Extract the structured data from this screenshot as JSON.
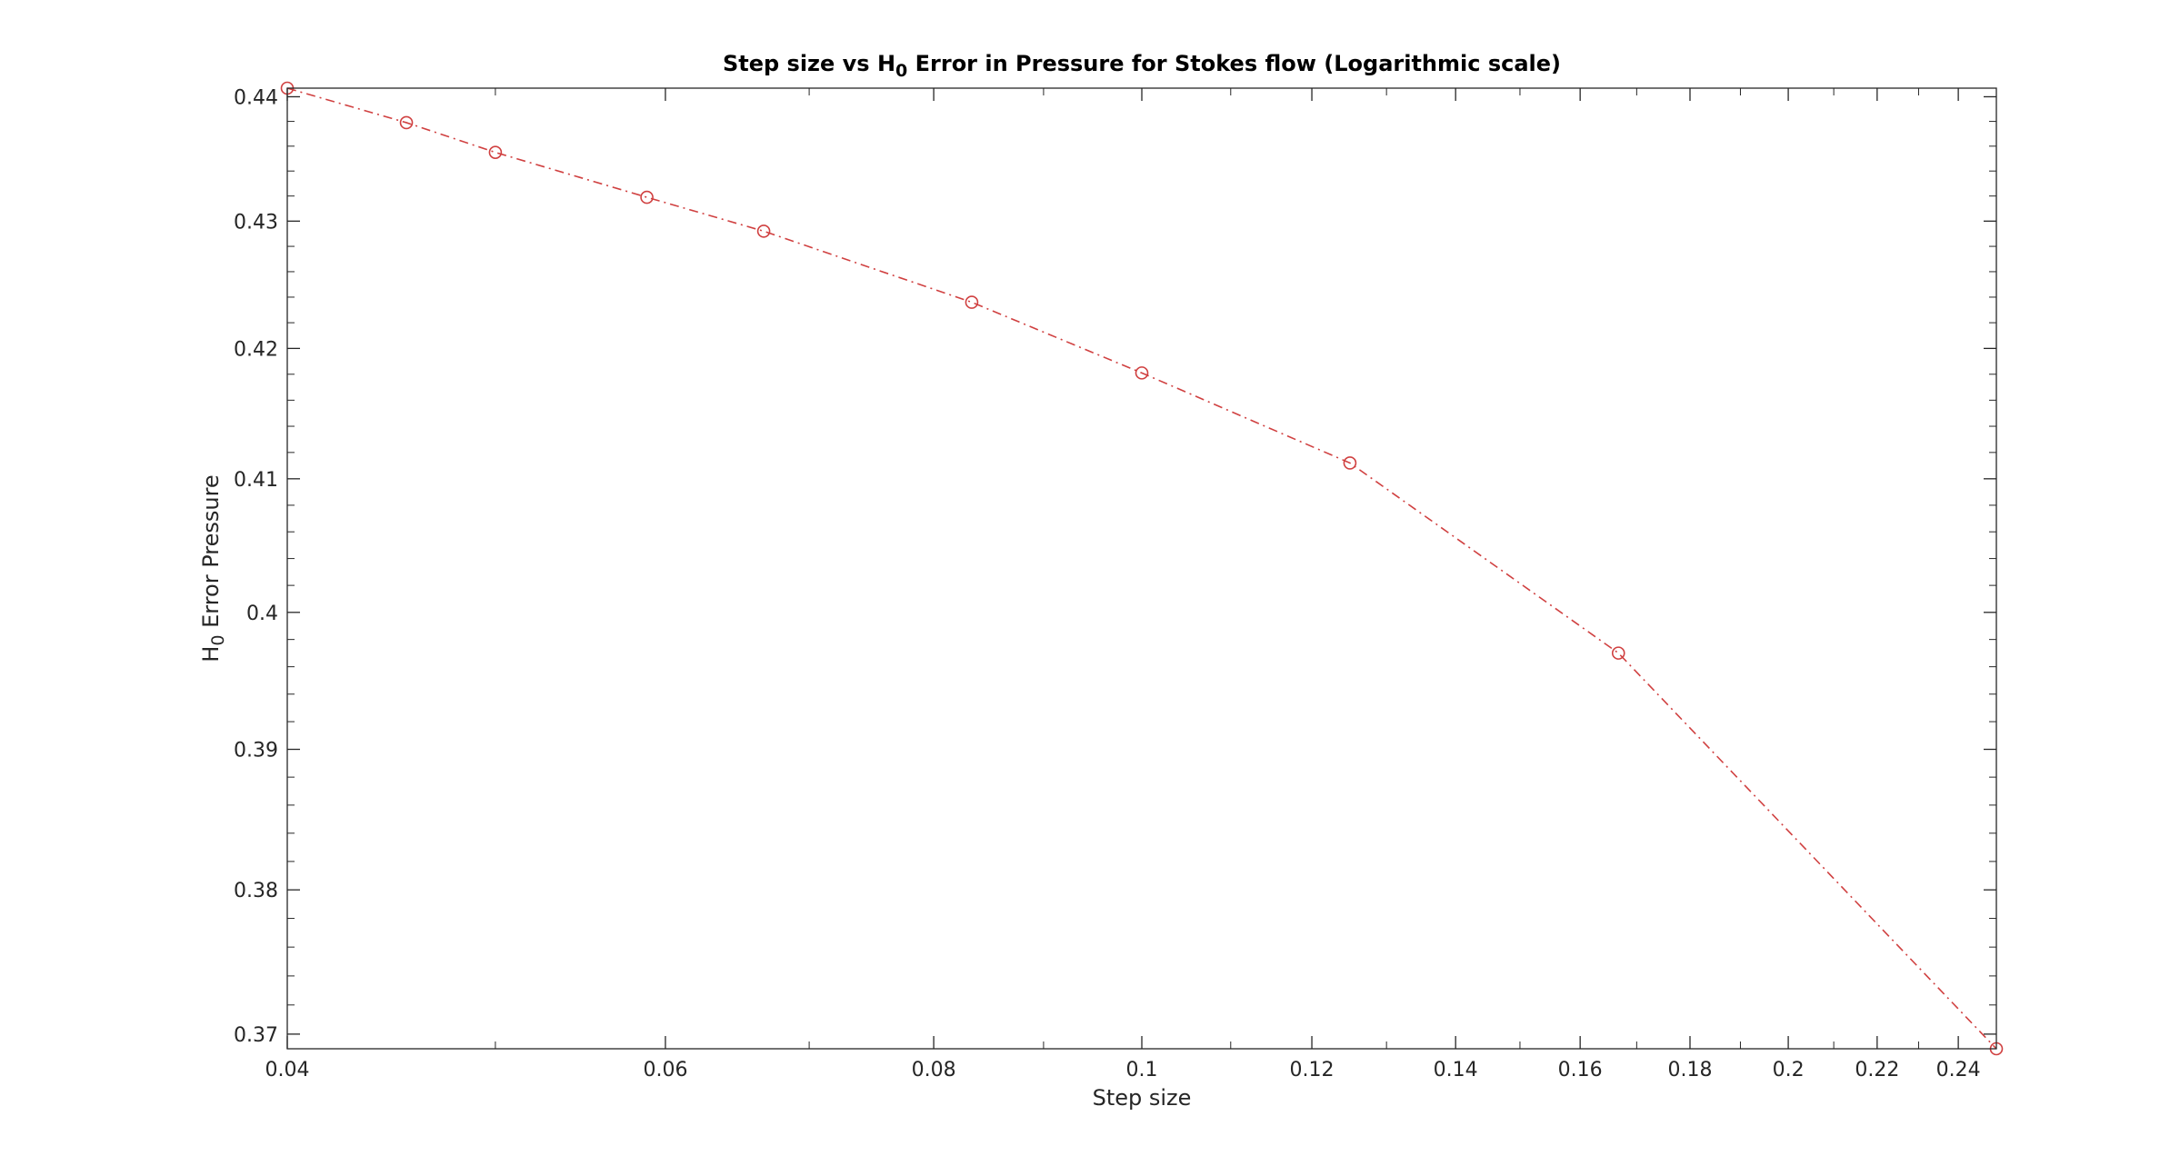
{
  "chart_data": {
    "type": "line",
    "title_main": "Step size vs H",
    "title_sub": "0",
    "title_rest": " Error in Pressure for Stokes flow (Logarithmic scale)",
    "xlabel": "Step size",
    "ylabel_main": "H",
    "ylabel_sub": "0",
    "ylabel_rest": " Error Pressure",
    "xscale": "log",
    "yscale": "log",
    "xlim": [
      0.04,
      0.25
    ],
    "ylim": [
      0.369,
      0.4407
    ],
    "x_ticks": [
      0.04,
      0.06,
      0.08,
      0.1,
      0.12,
      0.14,
      0.16,
      0.18,
      0.2,
      0.22,
      0.24
    ],
    "x_tick_labels": [
      "0.04",
      "0.06",
      "0.08",
      "0.1",
      "0.12",
      "0.14",
      "0.16",
      "0.18",
      "0.2",
      "0.22",
      "0.24"
    ],
    "y_ticks": [
      0.37,
      0.38,
      0.39,
      0.4,
      0.41,
      0.42,
      0.43,
      0.44
    ],
    "y_tick_labels": [
      "0.37",
      "0.38",
      "0.39",
      "0.4",
      "0.41",
      "0.42",
      "0.43",
      "0.44"
    ],
    "grid": false,
    "box": true,
    "series": [
      {
        "color": "#d04040",
        "line_style": "dash-dot",
        "marker": "circle",
        "x": [
          0.04,
          0.04545,
          0.05,
          0.05882,
          0.06667,
          0.08333,
          0.1,
          0.125,
          0.1667,
          0.25
        ],
        "y": [
          0.4407,
          0.4379,
          0.4355,
          0.4319,
          0.4292,
          0.4236,
          0.4181,
          0.4112,
          0.397,
          0.369
        ]
      }
    ]
  }
}
